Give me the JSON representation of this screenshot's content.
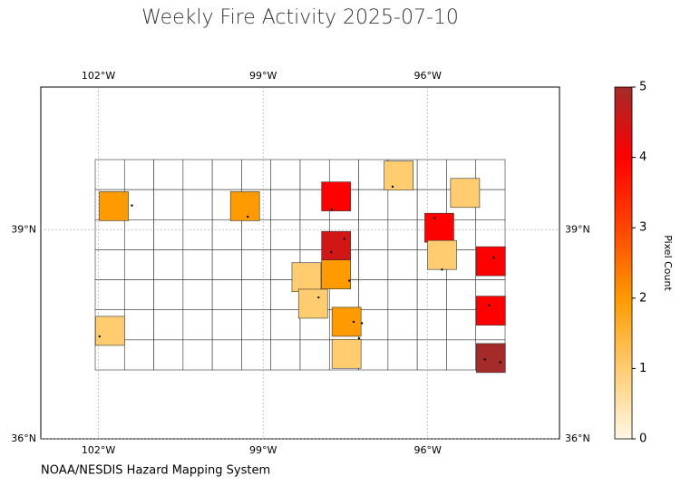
{
  "title": "Weekly Fire Activity 2025-07-10",
  "credit": "NOAA/NESDIS Hazard Mapping System",
  "map": {
    "xlim": [
      -103.05,
      -93.6
    ],
    "ylim": [
      36,
      41.05
    ],
    "xticks": [
      {
        "value": -102,
        "label": "102°W"
      },
      {
        "value": -99,
        "label": "99°W"
      },
      {
        "value": -96,
        "label": "96°W"
      }
    ],
    "yticks": [
      {
        "value": 39,
        "label": "39°N"
      },
      {
        "value": 36,
        "label": "36°N"
      }
    ],
    "grid": true,
    "counties": {
      "lon": [
        -101.72,
        -99.33,
        -96.53,
        -97.67,
        -95.32,
        -95.79,
        -97.67,
        -95.74,
        -94.85,
        -98.21,
        -97.67,
        -98.09,
        -97.48,
        -101.79,
        -94.85,
        -97.48,
        -94.85
      ],
      "lat": [
        39.34,
        39.34,
        39.78,
        39.48,
        39.53,
        39.03,
        38.77,
        38.64,
        38.55,
        38.32,
        38.36,
        37.94,
        37.68,
        37.55,
        37.84,
        37.22,
        37.16
      ],
      "values": [
        2,
        2,
        1,
        4,
        1,
        4,
        4.5,
        1,
        4,
        1,
        2,
        1,
        2,
        1,
        4,
        1,
        5
      ]
    },
    "fires": {
      "lon": [
        -101.39,
        -99.28,
        -96.64,
        -97.75,
        -97.52,
        -97.76,
        -97.43,
        -97.99,
        -97.35,
        -97.2,
        -97.25,
        -101.98,
        -95.87,
        -95.74,
        -94.88,
        -94.8,
        -94.96,
        -94.68
      ],
      "lat": [
        39.35,
        39.19,
        39.62,
        39.29,
        38.87,
        38.68,
        38.27,
        38.03,
        37.68,
        37.66,
        37.44,
        37.47,
        39.17,
        38.43,
        37.92,
        38.6,
        37.14,
        37.1
      ]
    }
  },
  "colorbar": {
    "label": "Pixel Count",
    "lim": [
      0,
      5
    ],
    "ticks": [
      0,
      1,
      2,
      3,
      4,
      5
    ],
    "colors": [
      "#fff8e6",
      "#ffcc70",
      "#ff9a00",
      "#ff4500",
      "#ff0000",
      "#a52a2a"
    ]
  }
}
